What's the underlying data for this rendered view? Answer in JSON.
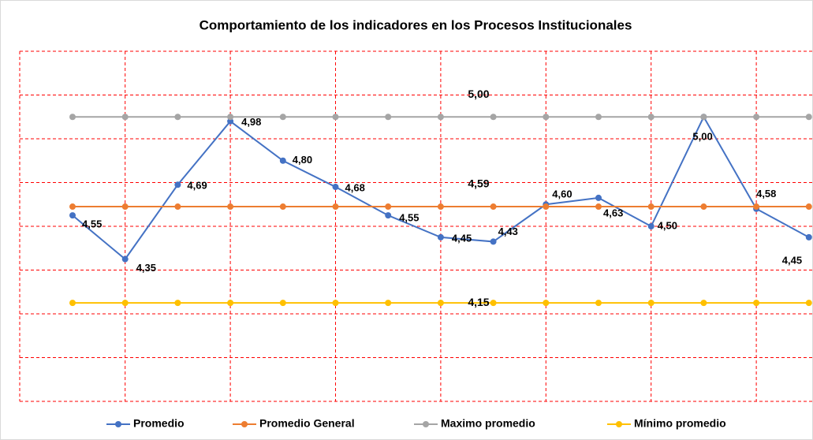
{
  "chart_data": {
    "type": "line",
    "title": "Comportamiento de los indicadores en los Procesos Institucionales",
    "categories": [
      null,
      null,
      null,
      null,
      null,
      null,
      null,
      null,
      null,
      null,
      null,
      null,
      null,
      null,
      null
    ],
    "series": [
      {
        "name": "Promedio",
        "color": "#4472c4",
        "values": [
          4.55,
          4.35,
          4.69,
          4.98,
          4.8,
          4.68,
          4.55,
          4.45,
          4.43,
          4.6,
          4.63,
          4.5,
          5.0,
          4.58,
          4.45
        ],
        "value_labels": [
          "4,55",
          "4,35",
          "4,69",
          "4,98",
          "4,80",
          "4,68",
          "4,55",
          "4,45",
          "4,43",
          "4,60",
          "4,63",
          "4,50",
          "5,00",
          "4,58",
          "4,45"
        ]
      },
      {
        "name": "Promedio General",
        "color": "#ed7d31",
        "values": [
          4.59,
          4.59,
          4.59,
          4.59,
          4.59,
          4.59,
          4.59,
          4.59,
          4.59,
          4.59,
          4.59,
          4.59,
          4.59,
          4.59,
          4.59
        ],
        "value_labels": [
          null,
          null,
          null,
          null,
          null,
          null,
          null,
          null,
          "4,59",
          null,
          null,
          null,
          null,
          null,
          null
        ]
      },
      {
        "name": "Maximo promedio",
        "color": "#a5a5a5",
        "values": [
          5.0,
          5.0,
          5.0,
          5.0,
          5.0,
          5.0,
          5.0,
          5.0,
          5.0,
          5.0,
          5.0,
          5.0,
          5.0,
          5.0,
          5.0
        ],
        "value_labels": [
          null,
          null,
          null,
          null,
          null,
          null,
          null,
          null,
          "5,00",
          null,
          null,
          null,
          null,
          null,
          null
        ]
      },
      {
        "name": "Mínimo promedio",
        "color": "#ffc000",
        "values": [
          4.15,
          4.15,
          4.15,
          4.15,
          4.15,
          4.15,
          4.15,
          4.15,
          4.15,
          4.15,
          4.15,
          4.15,
          4.15,
          4.15,
          4.15
        ],
        "value_labels": [
          null,
          null,
          null,
          null,
          null,
          null,
          null,
          null,
          "4,15",
          null,
          null,
          null,
          null,
          null,
          null
        ]
      }
    ],
    "ylim": [
      3.7,
      5.3
    ],
    "yticks": [
      3.7,
      3.9,
      4.1,
      4.3,
      4.5,
      4.7,
      4.9,
      5.1,
      5.3
    ],
    "grid": true,
    "legend": "bottom"
  }
}
